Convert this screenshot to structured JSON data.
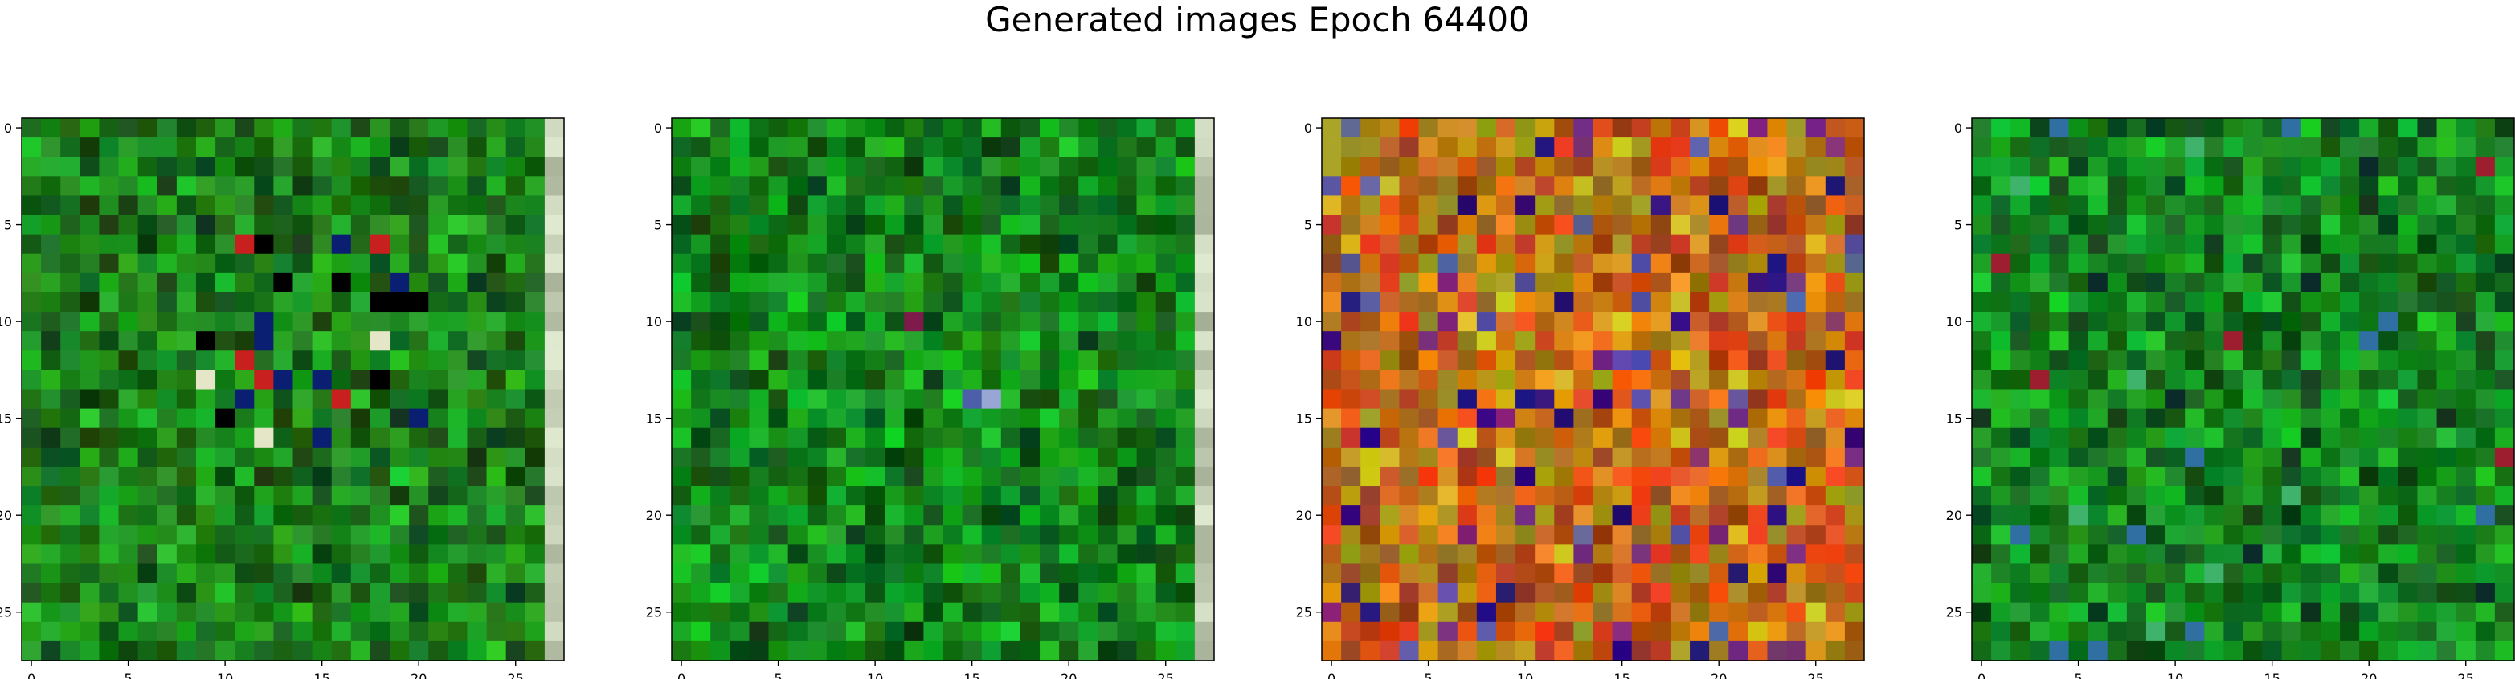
{
  "page": {
    "title": "Generated images Epoch 64400"
  },
  "chart_data": {
    "type": "heatmap",
    "title": "Generated images Epoch 64400",
    "panels": [
      {
        "name": "",
        "palette": "green-noise",
        "base_color": "#1f8a1f",
        "accent_colors": [
          "#c81f1f",
          "#0b1f72",
          "#000000",
          "#e5e5c8"
        ],
        "xticks": [
          0,
          5,
          10,
          15,
          20,
          25
        ],
        "yticks": [
          0,
          5,
          10,
          15,
          20,
          25
        ],
        "xlim": [
          -0.5,
          27.5
        ],
        "ylim": [
          27.5,
          -0.5
        ]
      },
      {
        "name": "",
        "palette": "green-noise",
        "base_color": "#168f1f",
        "accent_colors": [
          "#4c5fa8",
          "#7f1b4a",
          "#98a6d6",
          "#c6d9c8"
        ],
        "xticks": [
          0,
          5,
          10,
          15,
          20,
          25
        ],
        "yticks": [
          0,
          5,
          10,
          15,
          20,
          25
        ],
        "xlim": [
          -0.5,
          27.5
        ],
        "ylim": [
          27.5,
          -0.5
        ]
      },
      {
        "name": "",
        "palette": "orange-noise",
        "base_color": "#c26c18",
        "accent_colors": [
          "#2b0e7a",
          "#7e2f77",
          "#5a5aa0",
          "#d6c41e"
        ],
        "xticks": [
          0,
          5,
          10,
          15,
          20,
          25
        ],
        "yticks": [
          0,
          5,
          10,
          15,
          20,
          25
        ],
        "xlim": [
          -0.5,
          27.5
        ],
        "ylim": [
          27.5,
          -0.5
        ]
      },
      {
        "name": "",
        "palette": "green-noise",
        "base_color": "#178d23",
        "accent_colors": [
          "#2f6fa2",
          "#0b2a2a",
          "#9c1e2f",
          "#3fb36c"
        ],
        "xticks": [
          0,
          5,
          10,
          15,
          20,
          25
        ],
        "yticks": [
          0,
          5,
          10,
          15,
          20,
          25
        ],
        "xlim": [
          -0.5,
          27.5
        ],
        "ylim": [
          27.5,
          -0.5
        ]
      }
    ],
    "grid": false
  }
}
